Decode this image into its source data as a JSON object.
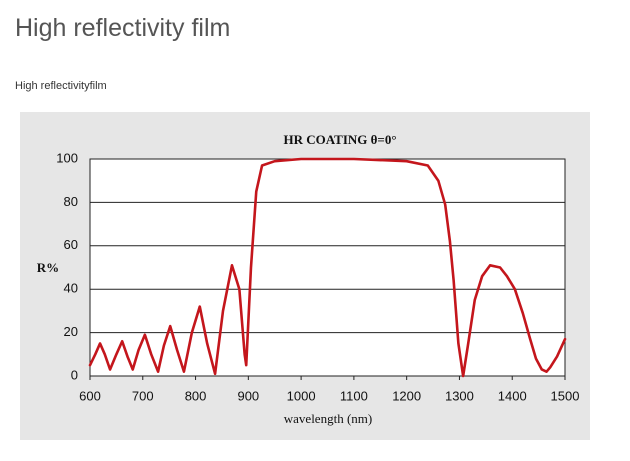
{
  "page_title": "High reflectivity film",
  "page_subtitle": "High reflectivityfilm",
  "chart_data": {
    "type": "line",
    "title": "HR COATING θ=0°",
    "x_label": "wavelength (nm)",
    "y_label": "R%",
    "xlim": [
      600,
      1500
    ],
    "xticks": [
      600,
      700,
      800,
      900,
      1000,
      1100,
      1200,
      1300,
      1400,
      1500
    ],
    "ylim": [
      0,
      100
    ],
    "yticks": [
      0,
      20,
      40,
      60,
      80,
      100
    ],
    "grid": true,
    "x": [
      600,
      610,
      619,
      628,
      638,
      650,
      661,
      671,
      681,
      692,
      704,
      716,
      729,
      740,
      752,
      765,
      778,
      793,
      808,
      822,
      837,
      852,
      869,
      883,
      893,
      896,
      905,
      915,
      926,
      950,
      1000,
      1100,
      1200,
      1240,
      1260,
      1273,
      1282,
      1289,
      1298,
      1307,
      1316,
      1329,
      1343,
      1358,
      1377,
      1390,
      1405,
      1420,
      1434,
      1445,
      1456,
      1465,
      1472,
      1485,
      1500
    ],
    "series": [
      {
        "color": "#c4161c",
        "values": [
          5,
          10,
          15,
          10,
          3,
          10,
          16,
          9,
          3,
          12,
          19,
          10,
          2,
          14,
          23,
          12,
          2,
          20,
          32,
          15,
          1,
          30,
          51,
          40,
          10,
          5,
          50,
          85,
          97,
          99,
          100,
          100,
          99,
          97,
          90,
          79,
          62,
          44,
          15,
          0,
          14,
          35,
          46,
          51,
          50,
          46,
          40,
          29,
          17,
          8,
          3,
          2,
          4,
          9,
          17
        ]
      }
    ]
  }
}
